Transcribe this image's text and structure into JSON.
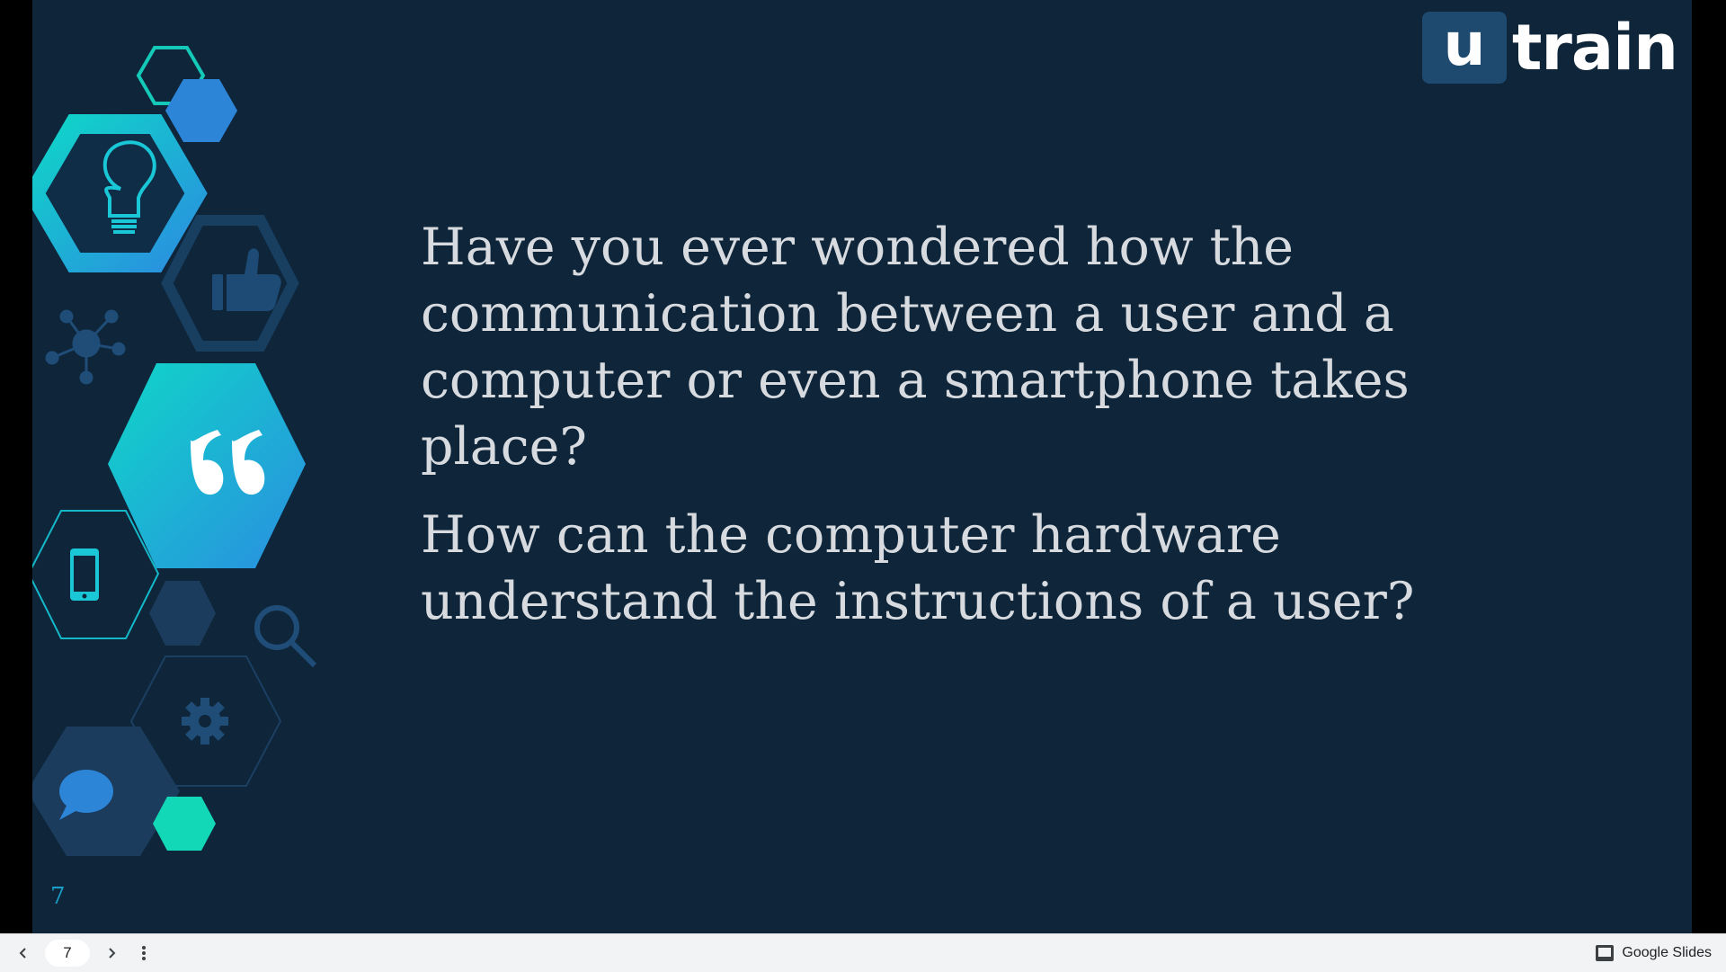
{
  "slide": {
    "logo": {
      "box_letter": "u",
      "word": "train"
    },
    "paragraphs": [
      "Have you ever wondered how the communication between a user and a computer or even a smartphone takes place?",
      "How can the computer hardware understand the instructions of a user?"
    ],
    "slide_number": "7",
    "icons": [
      "lightbulb-icon",
      "thumbs-up-icon",
      "network-icon",
      "quote-icon",
      "smartphone-icon",
      "magnifier-icon",
      "gear-icon",
      "chat-bubble-icon"
    ]
  },
  "controls": {
    "page_value": "7",
    "brand_label": "Google Slides"
  },
  "colors": {
    "slide_background": "#0e253a",
    "accent_teal": "#12c9c9",
    "accent_blue": "#2f8be0",
    "dark_hex": "#1b3c5c"
  }
}
